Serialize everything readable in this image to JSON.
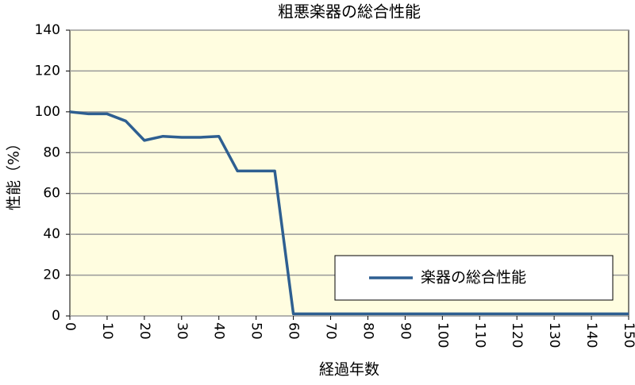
{
  "chart_data": {
    "type": "line",
    "title": "粗悪楽器の総合性能",
    "x_label": "経過年数",
    "y_label": "性能（%）",
    "x": [
      0,
      5,
      10,
      15,
      20,
      25,
      30,
      35,
      40,
      45,
      50,
      55,
      60,
      150
    ],
    "series": [
      {
        "name": "楽器の総合性能",
        "color": "#2e5f91",
        "values": [
          100,
          99,
          99,
          95.5,
          86,
          88,
          87.5,
          87.5,
          88,
          71,
          71,
          71,
          1,
          1
        ]
      }
    ],
    "xlim": [
      0,
      150
    ],
    "xticks": [
      0,
      10,
      20,
      30,
      40,
      50,
      60,
      70,
      80,
      90,
      100,
      110,
      120,
      130,
      140,
      150
    ],
    "ylim": [
      0,
      140
    ],
    "yticks": [
      0,
      20,
      40,
      60,
      80,
      100,
      120,
      140
    ],
    "grid": true,
    "legend": "lower right"
  }
}
